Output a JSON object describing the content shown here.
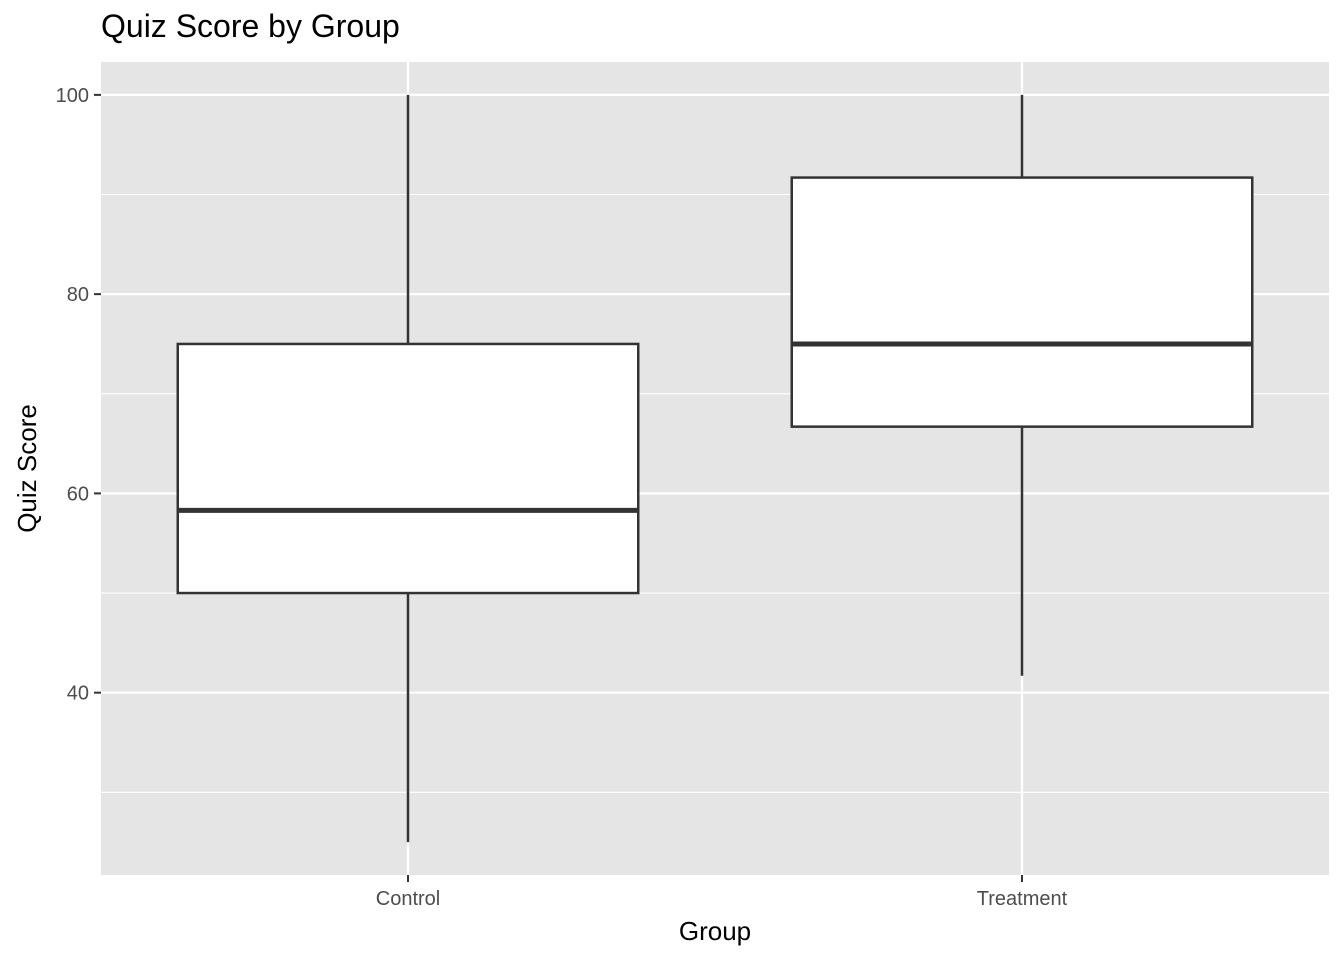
{
  "chart_data": {
    "type": "boxplot",
    "title": "Quiz Score by Group",
    "xlabel": "Group",
    "ylabel": "Quiz Score",
    "categories": [
      "Control",
      "Treatment"
    ],
    "boxes": [
      {
        "category": "Control",
        "min": 25,
        "q1": 50,
        "median": 58.3,
        "q3": 75,
        "max": 100
      },
      {
        "category": "Treatment",
        "min": 41.7,
        "q1": 66.7,
        "median": 75,
        "q3": 91.7,
        "max": 100
      }
    ],
    "yticks": [
      40,
      60,
      80,
      100
    ],
    "ylim": [
      21.7,
      103.3
    ],
    "grid": true,
    "colors": {
      "panel_bg": "#e5e5e5",
      "grid": "#ffffff",
      "box_fill": "#ffffff",
      "box_stroke": "#333333",
      "tick": "#333333"
    }
  }
}
